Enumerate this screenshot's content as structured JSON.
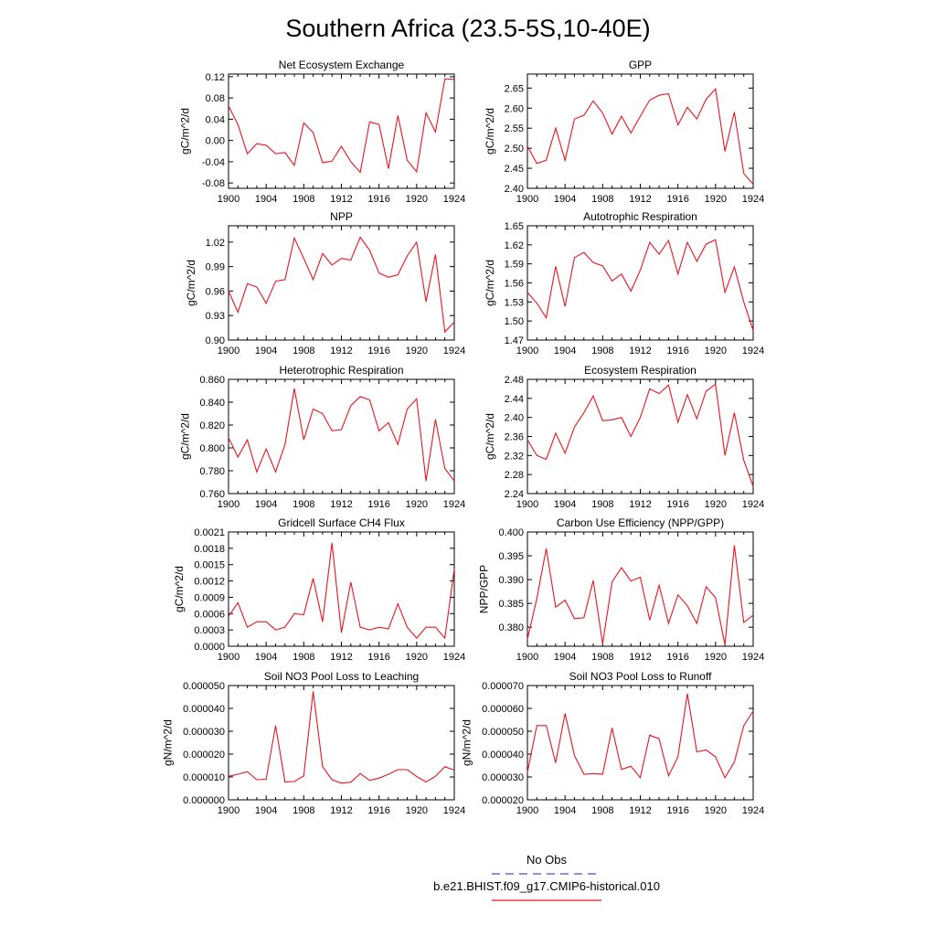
{
  "figure": {
    "title": "Southern Africa (23.5-5S,10-40E)",
    "line_color": "#e8141e",
    "obs_color": "#4b4bd6"
  },
  "legend": {
    "entries": [
      {
        "label": "No Obs",
        "style": "dashed",
        "color": "#4b4bd6"
      },
      {
        "label": "b.e21.BHIST.f09_g17.CMIP6-historical.010",
        "style": "solid",
        "color": "#e8141e"
      }
    ]
  },
  "chart_data": [
    {
      "type": "line",
      "title": "Net Ecosystem Exchange",
      "ylabel": "gC/m^2/d",
      "xlim": [
        1900,
        1924
      ],
      "ylim": [
        -0.09,
        0.125
      ],
      "x_ticks": [
        1900,
        1904,
        1908,
        1912,
        1916,
        1920,
        1924
      ],
      "x_tick_labels": [
        "1900",
        "1904",
        "1908",
        "1912",
        "1916",
        "1920",
        "1924"
      ],
      "y_ticks": [
        -0.08,
        -0.04,
        0.0,
        0.04,
        0.08,
        0.12
      ],
      "y_tick_labels": [
        "-0.08",
        "-0.04",
        "0.00",
        "0.04",
        "0.08",
        "0.12"
      ],
      "x": [
        1900,
        1901,
        1902,
        1903,
        1904,
        1905,
        1906,
        1907,
        1908,
        1909,
        1910,
        1911,
        1912,
        1913,
        1914,
        1915,
        1916,
        1917,
        1918,
        1919,
        1920,
        1921,
        1922,
        1923,
        1924
      ],
      "values": [
        0.065,
        0.03,
        -0.025,
        -0.006,
        -0.009,
        -0.025,
        -0.023,
        -0.047,
        0.033,
        0.015,
        -0.042,
        -0.039,
        -0.011,
        -0.04,
        -0.06,
        0.035,
        0.03,
        -0.053,
        0.047,
        -0.037,
        -0.059,
        0.052,
        0.016,
        0.116,
        0.115
      ]
    },
    {
      "type": "line",
      "title": "GPP",
      "ylabel": "gC/m^2/d",
      "xlim": [
        1900,
        1924
      ],
      "ylim": [
        2.4,
        2.685
      ],
      "x_ticks": [
        1900,
        1904,
        1908,
        1912,
        1916,
        1920,
        1924
      ],
      "x_tick_labels": [
        "1900",
        "1904",
        "1908",
        "1912",
        "1916",
        "1920",
        "1924"
      ],
      "y_ticks": [
        2.4,
        2.45,
        2.5,
        2.55,
        2.6,
        2.65
      ],
      "y_tick_labels": [
        "2.40",
        "2.45",
        "2.50",
        "2.55",
        "2.60",
        "2.65"
      ],
      "x": [
        1900,
        1901,
        1902,
        1903,
        1904,
        1905,
        1906,
        1907,
        1908,
        1909,
        1910,
        1911,
        1912,
        1913,
        1914,
        1915,
        1916,
        1917,
        1918,
        1919,
        1920,
        1921,
        1922,
        1923,
        1924
      ],
      "values": [
        2.505,
        2.462,
        2.47,
        2.55,
        2.47,
        2.573,
        2.582,
        2.618,
        2.588,
        2.535,
        2.58,
        2.538,
        2.58,
        2.62,
        2.632,
        2.636,
        2.558,
        2.602,
        2.573,
        2.622,
        2.648,
        2.492,
        2.59,
        2.437,
        2.41
      ]
    },
    {
      "type": "line",
      "title": "NPP",
      "ylabel": "gC/m^2/d",
      "xlim": [
        1900,
        1924
      ],
      "ylim": [
        0.9,
        1.04
      ],
      "x_ticks": [
        1900,
        1904,
        1908,
        1912,
        1916,
        1920,
        1924
      ],
      "x_tick_labels": [
        "1900",
        "1904",
        "1908",
        "1912",
        "1916",
        "1920",
        "1924"
      ],
      "y_ticks": [
        0.9,
        0.93,
        0.96,
        0.99,
        1.02
      ],
      "y_tick_labels": [
        "0.90",
        "0.93",
        "0.96",
        "0.99",
        "1.02"
      ],
      "x": [
        1900,
        1901,
        1902,
        1903,
        1904,
        1905,
        1906,
        1907,
        1908,
        1909,
        1910,
        1911,
        1912,
        1913,
        1914,
        1915,
        1916,
        1917,
        1918,
        1919,
        1920,
        1921,
        1922,
        1923,
        1924
      ],
      "values": [
        0.96,
        0.934,
        0.969,
        0.965,
        0.945,
        0.972,
        0.974,
        1.025,
        1.0,
        0.974,
        1.006,
        0.992,
        1.0,
        0.998,
        1.026,
        1.01,
        0.982,
        0.977,
        0.98,
        1.003,
        1.02,
        0.947,
        1.005,
        0.91,
        0.922
      ]
    },
    {
      "type": "line",
      "title": "Autotrophic Respiration",
      "ylabel": "gC/m^2/d",
      "xlim": [
        1900,
        1924
      ],
      "ylim": [
        1.47,
        1.65
      ],
      "x_ticks": [
        1900,
        1904,
        1908,
        1912,
        1916,
        1920,
        1924
      ],
      "x_tick_labels": [
        "1900",
        "1904",
        "1908",
        "1912",
        "1916",
        "1920",
        "1924"
      ],
      "y_ticks": [
        1.47,
        1.5,
        1.53,
        1.56,
        1.59,
        1.62,
        1.65
      ],
      "y_tick_labels": [
        "1.47",
        "1.50",
        "1.53",
        "1.56",
        "1.59",
        "1.62",
        "1.65"
      ],
      "x": [
        1900,
        1901,
        1902,
        1903,
        1904,
        1905,
        1906,
        1907,
        1908,
        1909,
        1910,
        1911,
        1912,
        1913,
        1914,
        1915,
        1916,
        1917,
        1918,
        1919,
        1920,
        1921,
        1922,
        1923,
        1924
      ],
      "values": [
        1.545,
        1.528,
        1.505,
        1.586,
        1.523,
        1.6,
        1.608,
        1.592,
        1.587,
        1.563,
        1.574,
        1.547,
        1.58,
        1.624,
        1.605,
        1.627,
        1.574,
        1.624,
        1.594,
        1.621,
        1.628,
        1.545,
        1.585,
        1.53,
        1.485
      ]
    },
    {
      "type": "line",
      "title": "Heterotrophic Respiration",
      "ylabel": "gC/m^2/d",
      "xlim": [
        1900,
        1924
      ],
      "ylim": [
        0.76,
        0.86
      ],
      "x_ticks": [
        1900,
        1904,
        1908,
        1912,
        1916,
        1920,
        1924
      ],
      "x_tick_labels": [
        "1900",
        "1904",
        "1908",
        "1912",
        "1916",
        "1920",
        "1924"
      ],
      "y_ticks": [
        0.76,
        0.78,
        0.8,
        0.82,
        0.84,
        0.86
      ],
      "y_tick_labels": [
        "0.760",
        "0.780",
        "0.800",
        "0.820",
        "0.840",
        "0.860"
      ],
      "x": [
        1900,
        1901,
        1902,
        1903,
        1904,
        1905,
        1906,
        1907,
        1908,
        1909,
        1910,
        1911,
        1912,
        1913,
        1914,
        1915,
        1916,
        1917,
        1918,
        1919,
        1920,
        1921,
        1922,
        1923,
        1924
      ],
      "values": [
        0.809,
        0.792,
        0.807,
        0.779,
        0.799,
        0.779,
        0.803,
        0.852,
        0.807,
        0.834,
        0.83,
        0.815,
        0.816,
        0.837,
        0.845,
        0.842,
        0.815,
        0.822,
        0.803,
        0.834,
        0.843,
        0.771,
        0.825,
        0.782,
        0.771
      ]
    },
    {
      "type": "line",
      "title": "Ecosystem Respiration",
      "ylabel": "gC/m^2/d",
      "xlim": [
        1900,
        1924
      ],
      "ylim": [
        2.24,
        2.48
      ],
      "x_ticks": [
        1900,
        1904,
        1908,
        1912,
        1916,
        1920,
        1924
      ],
      "x_tick_labels": [
        "1900",
        "1904",
        "1908",
        "1912",
        "1916",
        "1920",
        "1924"
      ],
      "y_ticks": [
        2.24,
        2.28,
        2.32,
        2.36,
        2.4,
        2.44,
        2.48
      ],
      "y_tick_labels": [
        "2.24",
        "2.28",
        "2.32",
        "2.36",
        "2.40",
        "2.44",
        "2.48"
      ],
      "x": [
        1900,
        1901,
        1902,
        1903,
        1904,
        1905,
        1906,
        1907,
        1908,
        1909,
        1910,
        1911,
        1912,
        1913,
        1914,
        1915,
        1916,
        1917,
        1918,
        1919,
        1920,
        1921,
        1922,
        1923,
        1924
      ],
      "values": [
        2.353,
        2.32,
        2.312,
        2.367,
        2.325,
        2.38,
        2.41,
        2.445,
        2.393,
        2.395,
        2.4,
        2.36,
        2.4,
        2.46,
        2.45,
        2.468,
        2.39,
        2.448,
        2.397,
        2.455,
        2.47,
        2.32,
        2.41,
        2.31,
        2.255
      ]
    },
    {
      "type": "line",
      "title": "Gridcell Surface CH4 Flux",
      "ylabel": "gC/m^2/d",
      "xlim": [
        1900,
        1924
      ],
      "ylim": [
        0.0,
        0.0021
      ],
      "x_ticks": [
        1900,
        1904,
        1908,
        1912,
        1916,
        1920,
        1924
      ],
      "x_tick_labels": [
        "1900",
        "1904",
        "1908",
        "1912",
        "1916",
        "1920",
        "1924"
      ],
      "y_ticks": [
        0.0,
        0.0003,
        0.0006,
        0.0009,
        0.0012,
        0.0015,
        0.0018,
        0.0021
      ],
      "y_tick_labels": [
        "0.0000",
        "0.0003",
        "0.0006",
        "0.0009",
        "0.0012",
        "0.0015",
        "0.0018",
        "0.0021"
      ],
      "x": [
        1900,
        1901,
        1902,
        1903,
        1904,
        1905,
        1906,
        1907,
        1908,
        1909,
        1910,
        1911,
        1912,
        1913,
        1914,
        1915,
        1916,
        1917,
        1918,
        1919,
        1920,
        1921,
        1922,
        1923,
        1924
      ],
      "values": [
        0.00055,
        0.0008,
        0.00035,
        0.00045,
        0.00045,
        0.0003,
        0.00035,
        0.0006,
        0.00058,
        0.00125,
        0.00045,
        0.0019,
        0.00025,
        0.00118,
        0.00035,
        0.0003,
        0.00035,
        0.00032,
        0.00078,
        0.00035,
        0.00015,
        0.00035,
        0.00035,
        0.00015,
        0.00142
      ]
    },
    {
      "type": "line",
      "title": "Carbon Use Efficiency (NPP/GPP)",
      "ylabel": "NPP/GPP",
      "xlim": [
        1900,
        1924
      ],
      "ylim": [
        0.376,
        0.4
      ],
      "x_ticks": [
        1900,
        1904,
        1908,
        1912,
        1916,
        1920,
        1924
      ],
      "x_tick_labels": [
        "1900",
        "1904",
        "1908",
        "1912",
        "1916",
        "1920",
        "1924"
      ],
      "y_ticks": [
        0.38,
        0.385,
        0.39,
        0.395,
        0.4
      ],
      "y_tick_labels": [
        "0.380",
        "0.385",
        "0.390",
        "0.395",
        "0.400"
      ],
      "x": [
        1900,
        1901,
        1902,
        1903,
        1904,
        1905,
        1906,
        1907,
        1908,
        1909,
        1910,
        1911,
        1912,
        1913,
        1914,
        1915,
        1916,
        1917,
        1918,
        1919,
        1920,
        1921,
        1922,
        1923,
        1924
      ],
      "values": [
        0.3775,
        0.386,
        0.3965,
        0.3842,
        0.3857,
        0.3818,
        0.382,
        0.3898,
        0.3765,
        0.3895,
        0.3925,
        0.3897,
        0.3905,
        0.3815,
        0.3888,
        0.3808,
        0.3868,
        0.3845,
        0.3808,
        0.3885,
        0.3862,
        0.3763,
        0.3972,
        0.381,
        0.3825
      ]
    },
    {
      "type": "line",
      "title": "Soil NO3 Pool Loss to Leaching",
      "ylabel": "gN/m^2/d",
      "xlim": [
        1900,
        1924
      ],
      "ylim": [
        0.0,
        5e-05
      ],
      "x_ticks": [
        1900,
        1904,
        1908,
        1912,
        1916,
        1920,
        1924
      ],
      "x_tick_labels": [
        "1900",
        "1904",
        "1908",
        "1912",
        "1916",
        "1920",
        "1924"
      ],
      "y_ticks": [
        0.0,
        1e-05,
        2e-05,
        3e-05,
        4e-05,
        5e-05
      ],
      "y_tick_labels": [
        "0.000000",
        "0.000010",
        "0.000020",
        "0.000030",
        "0.000040",
        "0.000050"
      ],
      "x": [
        1900,
        1901,
        1902,
        1903,
        1904,
        1905,
        1906,
        1907,
        1908,
        1909,
        1910,
        1911,
        1912,
        1913,
        1914,
        1915,
        1916,
        1917,
        1918,
        1919,
        1920,
        1921,
        1922,
        1923,
        1924
      ],
      "values": [
        1.03e-05,
        1.12e-05,
        1.23e-05,
        8.8e-06,
        9e-06,
        3.25e-05,
        7.8e-06,
        8e-06,
        1.05e-05,
        4.75e-05,
        1.45e-05,
        8.8e-06,
        7.3e-06,
        7.7e-06,
        1.15e-05,
        8.5e-06,
        9.5e-06,
        1.12e-05,
        1.32e-05,
        1.32e-05,
        1.02e-05,
        7.8e-06,
        1.03e-05,
        1.45e-05,
        1.3e-05
      ]
    },
    {
      "type": "line",
      "title": "Soil NO3 Pool Loss to Runoff",
      "ylabel": "gN/m^2/d",
      "xlim": [
        1900,
        1924
      ],
      "ylim": [
        2e-05,
        7e-05
      ],
      "x_ticks": [
        1900,
        1904,
        1908,
        1912,
        1916,
        1920,
        1924
      ],
      "x_tick_labels": [
        "1900",
        "1904",
        "1908",
        "1912",
        "1916",
        "1920",
        "1924"
      ],
      "y_ticks": [
        2e-05,
        3e-05,
        4e-05,
        5e-05,
        6e-05,
        7e-05
      ],
      "y_tick_labels": [
        "0.000020",
        "0.000030",
        "0.000040",
        "0.000050",
        "0.000060",
        "0.000070"
      ],
      "x": [
        1900,
        1901,
        1902,
        1903,
        1904,
        1905,
        1906,
        1907,
        1908,
        1909,
        1910,
        1911,
        1912,
        1913,
        1914,
        1915,
        1916,
        1917,
        1918,
        1919,
        1920,
        1921,
        1922,
        1923,
        1924
      ],
      "values": [
        3.2e-05,
        5.25e-05,
        5.25e-05,
        3.62e-05,
        5.78e-05,
        3.93e-05,
        3.12e-05,
        3.15e-05,
        3.12e-05,
        5.15e-05,
        3.33e-05,
        3.47e-05,
        2.97e-05,
        4.83e-05,
        4.67e-05,
        3.05e-05,
        3.88e-05,
        6.65e-05,
        4.1e-05,
        4.18e-05,
        3.88e-05,
        2.97e-05,
        3.65e-05,
        5.25e-05,
        5.88e-05
      ]
    }
  ]
}
